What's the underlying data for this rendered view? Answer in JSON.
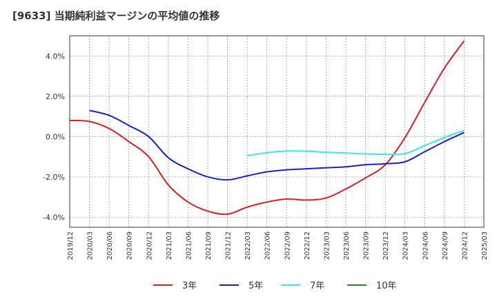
{
  "title": "[9633]  当期純利益マージンの平均値の推移",
  "chart_data": {
    "type": "line",
    "title": "[9633]  当期純利益マージンの平均値の推移",
    "ylim": [
      -4.5,
      5.0
    ],
    "yticks": [
      4.0,
      2.0,
      0.0,
      -2.0,
      -4.0
    ],
    "ytick_labels": [
      "4.0%",
      "2.0%",
      "0.0%",
      "-2.0%",
      "-4.0%"
    ],
    "x_ticks": [
      "2019/12",
      "2020/03",
      "2020/06",
      "2020/09",
      "2020/12",
      "2021/03",
      "2021/06",
      "2021/09",
      "2021/12",
      "2022/03",
      "2022/06",
      "2022/09",
      "2022/12",
      "2023/03",
      "2023/06",
      "2023/09",
      "2023/12",
      "2024/03",
      "2024/06",
      "2024/09",
      "2024/12",
      "2025/03"
    ],
    "grid": true,
    "legend_position": "bottom",
    "series": [
      {
        "name": "3年",
        "color": "#dd1c1c",
        "x": [
          "2019/12",
          "2020/03",
          "2020/06",
          "2020/09",
          "2020/12",
          "2021/03",
          "2021/06",
          "2021/09",
          "2021/12",
          "2022/03",
          "2022/06",
          "2022/09",
          "2022/12",
          "2023/03",
          "2023/06",
          "2023/09",
          "2023/12",
          "2024/03",
          "2024/06",
          "2024/09",
          "2024/12"
        ],
        "values": [
          0.8,
          0.75,
          0.4,
          -0.25,
          -1.0,
          -2.4,
          -3.25,
          -3.7,
          -3.85,
          -3.5,
          -3.25,
          -3.1,
          -3.15,
          -3.05,
          -2.6,
          -2.05,
          -1.4,
          -0.05,
          1.7,
          3.4,
          4.75
        ]
      },
      {
        "name": "5年",
        "color": "#1520c8",
        "x": [
          "2020/03",
          "2020/06",
          "2020/09",
          "2020/12",
          "2021/03",
          "2021/06",
          "2021/09",
          "2021/12",
          "2022/03",
          "2022/06",
          "2022/09",
          "2022/12",
          "2023/03",
          "2023/06",
          "2023/09",
          "2023/12",
          "2024/03",
          "2024/06",
          "2024/09",
          "2024/12"
        ],
        "values": [
          1.3,
          1.05,
          0.55,
          0.0,
          -1.05,
          -1.6,
          -2.0,
          -2.15,
          -1.95,
          -1.75,
          -1.65,
          -1.6,
          -1.55,
          -1.5,
          -1.4,
          -1.35,
          -1.25,
          -0.75,
          -0.25,
          0.2
        ]
      },
      {
        "name": "7年",
        "color": "#33e8f0",
        "x": [
          "2022/03",
          "2022/06",
          "2022/09",
          "2022/12",
          "2023/03",
          "2023/06",
          "2023/09",
          "2023/12",
          "2024/03",
          "2024/06",
          "2024/09",
          "2024/12"
        ],
        "values": [
          -0.95,
          -0.8,
          -0.72,
          -0.73,
          -0.78,
          -0.82,
          -0.86,
          -0.88,
          -0.85,
          -0.45,
          -0.05,
          0.3
        ]
      },
      {
        "name": "10年",
        "color": "#1d8a1d",
        "x": [],
        "values": []
      }
    ]
  }
}
